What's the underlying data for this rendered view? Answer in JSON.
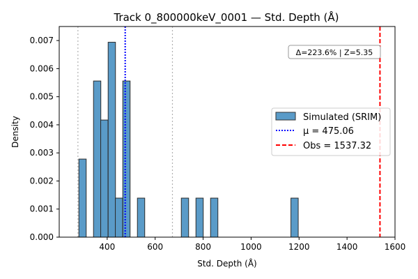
{
  "chart_data": {
    "type": "bar",
    "title": "Track 0_800000keV_0001 — Std. Depth (Å)",
    "xlabel": "Std. Depth (Å)",
    "ylabel": "Density",
    "xlim": [
      200,
      1600
    ],
    "ylim": [
      0,
      0.0075
    ],
    "x_ticks": [
      "400",
      "600",
      "800",
      "1000",
      "1200",
      "1400",
      "1600"
    ],
    "y_ticks": [
      "0.000",
      "0.001",
      "0.002",
      "0.003",
      "0.004",
      "0.005",
      "0.006",
      "0.007"
    ],
    "bin_width": 30.5,
    "series": [
      {
        "name": "Simulated (SRIM)",
        "color": "#5a9bc8",
        "bins": [
          {
            "start": 282,
            "density": 0.00278
          },
          {
            "start": 343,
            "density": 0.00556
          },
          {
            "start": 373,
            "density": 0.00417
          },
          {
            "start": 404,
            "density": 0.00694
          },
          {
            "start": 434,
            "density": 0.00139
          },
          {
            "start": 465,
            "density": 0.00556
          },
          {
            "start": 526,
            "density": 0.00139
          },
          {
            "start": 709,
            "density": 0.00139
          },
          {
            "start": 770,
            "density": 0.00139
          },
          {
            "start": 831,
            "density": 0.00139
          },
          {
            "start": 1166,
            "density": 0.00139
          }
        ]
      }
    ],
    "reference_lines": [
      {
        "label": "μ = 475.06",
        "x": 475.06,
        "color": "#0000ff",
        "style": "dotted"
      },
      {
        "label": "Obs = 1537.32",
        "x": 1537.32,
        "color": "#ff0000",
        "style": "dashed"
      }
    ],
    "sigma_lines": [
      {
        "x": 278,
        "color": "#b0b0b0"
      },
      {
        "x": 672,
        "color": "#b0b0b0"
      }
    ],
    "annotation": "Δ=223.6% | Z=5.35",
    "legend_position": "center-right",
    "grid": false
  }
}
